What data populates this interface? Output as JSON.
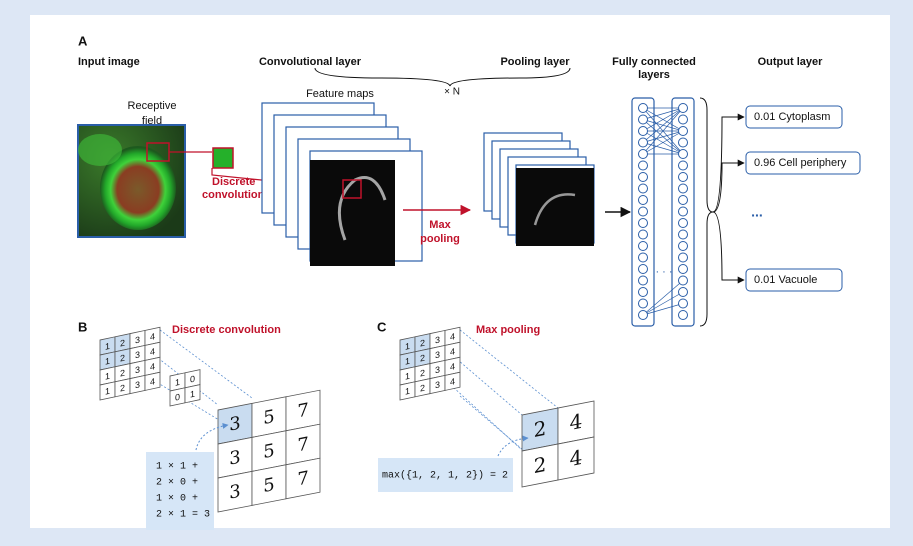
{
  "panel_a": {
    "label": "A",
    "input_title": "Input image",
    "receptive_field": [
      "Receptive",
      "field"
    ],
    "discrete_convolution": [
      "Discrete",
      "convolution"
    ],
    "conv_title": "Convolutional layer",
    "pool_title": "Pooling layer",
    "repeat": "× N",
    "feature_maps": "Feature maps",
    "max_pooling": [
      "Max",
      "pooling"
    ],
    "fc_title": [
      "Fully connected",
      "layers"
    ],
    "fc_ellipsis": "· · ·",
    "output_title": "Output layer",
    "outputs": [
      "0.01 Cytoplasm",
      "0.96 Cell periphery",
      "0.01 Vacuole"
    ],
    "output_ellipsis": "..."
  },
  "panel_b": {
    "label": "B",
    "title": "Discrete convolution",
    "input": [
      [
        1,
        2,
        3,
        4
      ],
      [
        1,
        2,
        3,
        4
      ],
      [
        1,
        2,
        3,
        4
      ],
      [
        1,
        2,
        3,
        4
      ]
    ],
    "kernel": [
      [
        1,
        0
      ],
      [
        0,
        1
      ]
    ],
    "output": [
      [
        3,
        5,
        7
      ],
      [
        3,
        5,
        7
      ],
      [
        3,
        5,
        7
      ]
    ],
    "calculation": [
      "1 × 1 +",
      "2 × 0 +",
      "1 × 0 +",
      "2 × 1 = 3"
    ]
  },
  "panel_c": {
    "label": "C",
    "title": "Max pooling",
    "input": [
      [
        1,
        2,
        3,
        4
      ],
      [
        1,
        2,
        3,
        4
      ],
      [
        1,
        2,
        3,
        4
      ],
      [
        1,
        2,
        3,
        4
      ]
    ],
    "output": [
      [
        2,
        4
      ],
      [
        2,
        4
      ]
    ],
    "calculation": "max({1, 2, 1, 2}) = 2"
  }
}
